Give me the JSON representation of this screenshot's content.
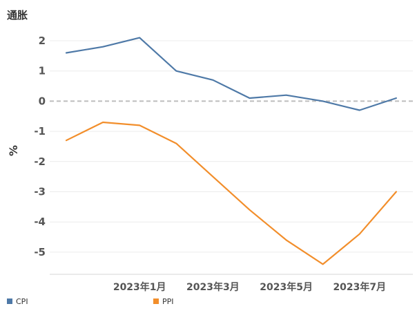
{
  "chart_data": {
    "type": "line",
    "title": "通胀",
    "ylabel": "%",
    "xlabel": "",
    "ylim": [
      -5.8,
      2.4
    ],
    "yticks": [
      2,
      1,
      0,
      -1,
      -2,
      -3,
      -4,
      -5
    ],
    "ytick_labels": [
      "2",
      "1",
      "0",
      "-1",
      "-2",
      "-3",
      "-4",
      "-5"
    ],
    "x": [
      "2022-11",
      "2022-12",
      "2023-01",
      "2023-02",
      "2023-03",
      "2023-04",
      "2023-05",
      "2023-06",
      "2023-07",
      "2023-08"
    ],
    "xtick_labels": [
      {
        "at": "2023-01",
        "label": "2023年1月"
      },
      {
        "at": "2023-03",
        "label": "2023年3月"
      },
      {
        "at": "2023-05",
        "label": "2023年5月"
      },
      {
        "at": "2023-07",
        "label": "2023年7月"
      }
    ],
    "zero_line": true,
    "legend_position": "bottom",
    "series": [
      {
        "name": "CPI",
        "color": "#4e79a7",
        "values": [
          1.6,
          1.8,
          2.1,
          1.0,
          0.7,
          0.1,
          0.2,
          0.0,
          -0.3,
          0.1
        ]
      },
      {
        "name": "PPI",
        "color": "#f28e2b",
        "values": [
          -1.3,
          -0.7,
          -0.8,
          -1.4,
          -2.5,
          -3.6,
          -4.6,
          -5.4,
          -4.4,
          -3.0
        ]
      }
    ]
  }
}
